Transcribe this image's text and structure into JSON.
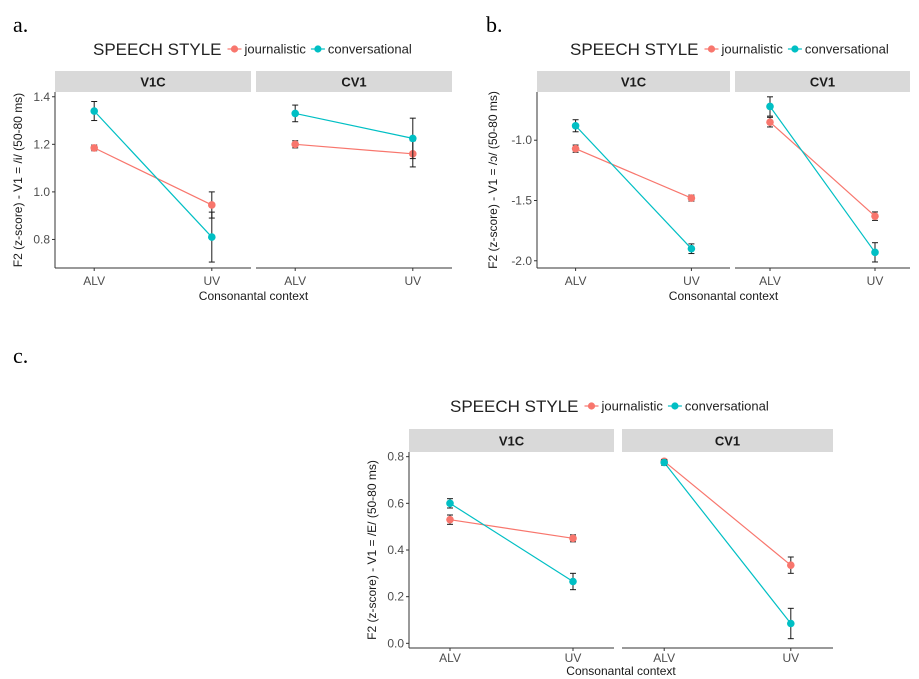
{
  "figure_labels": [
    "a.",
    "b.",
    "c."
  ],
  "colors": {
    "journalistic": "#F8766D",
    "conversational": "#00BFC4",
    "strip": "#D9D9D9",
    "axis": "#333333",
    "errorbar": "#1a1a1a"
  },
  "chart_data": [
    {
      "type": "line",
      "legend_title": "SPEECH STYLE",
      "legend_position": "top",
      "ylabel": "F2 (z-score) - V1 = /i/ (50-80 ms)",
      "xlabel": "Consonantal context",
      "categories": [
        "ALV",
        "UV"
      ],
      "ylim": [
        0.68,
        1.42
      ],
      "yticks": [
        0.8,
        1.0,
        1.2,
        1.4
      ],
      "ytick_labels": [
        "0.8",
        "1.0",
        "1.2",
        "1.4"
      ],
      "grid": false,
      "facets": [
        {
          "name": "V1C",
          "series": [
            {
              "name": "journalistic",
              "values": [
                1.185,
                0.945
              ],
              "err": [
                0.012,
                0.055
              ]
            },
            {
              "name": "conversational",
              "values": [
                1.34,
                0.81
              ],
              "err": [
                0.04,
                0.105
              ]
            }
          ]
        },
        {
          "name": "CV1",
          "series": [
            {
              "name": "journalistic",
              "values": [
                1.2,
                1.16
              ],
              "err": [
                0.015,
                0.055
              ]
            },
            {
              "name": "conversational",
              "values": [
                1.33,
                1.225
              ],
              "err": [
                0.035,
                0.085
              ]
            }
          ]
        }
      ]
    },
    {
      "type": "line",
      "legend_title": "SPEECH STYLE",
      "legend_position": "top",
      "ylabel": "F2 (z-score) - V1 = /ɔ/ (50-80 ms)",
      "xlabel": "Consonantal context",
      "categories": [
        "ALV",
        "UV"
      ],
      "ylim": [
        -2.06,
        -0.6
      ],
      "yticks": [
        -1.0,
        -1.5,
        -2.0
      ],
      "ytick_labels": [
        "-1.0",
        "-1.5",
        "-2.0"
      ],
      "grid": false,
      "facets": [
        {
          "name": "V1C",
          "series": [
            {
              "name": "journalistic",
              "values": [
                -1.07,
                -1.48
              ],
              "err": [
                0.03,
                0.025
              ]
            },
            {
              "name": "conversational",
              "values": [
                -0.88,
                -1.9
              ],
              "err": [
                0.05,
                0.04
              ]
            }
          ]
        },
        {
          "name": "CV1",
          "series": [
            {
              "name": "journalistic",
              "values": [
                -0.85,
                -1.63
              ],
              "err": [
                0.04,
                0.035
              ]
            },
            {
              "name": "conversational",
              "values": [
                -0.72,
                -1.93
              ],
              "err": [
                0.08,
                0.08
              ]
            }
          ]
        }
      ]
    },
    {
      "type": "line",
      "legend_title": "SPEECH STYLE",
      "legend_position": "top",
      "ylabel": "F2 (z-score) - V1 = /E/ (50-80 ms)",
      "xlabel": "Consonantal context",
      "categories": [
        "ALV",
        "UV"
      ],
      "ylim": [
        -0.02,
        0.82
      ],
      "yticks": [
        0.0,
        0.2,
        0.4,
        0.6,
        0.8
      ],
      "ytick_labels": [
        "0.0",
        "0.2",
        "0.4",
        "0.6",
        "0.8"
      ],
      "grid": false,
      "facets": [
        {
          "name": "V1C",
          "series": [
            {
              "name": "journalistic",
              "values": [
                0.53,
                0.45
              ],
              "err": [
                0.02,
                0.015
              ]
            },
            {
              "name": "conversational",
              "values": [
                0.6,
                0.265
              ],
              "err": [
                0.02,
                0.035
              ]
            }
          ]
        },
        {
          "name": "CV1",
          "series": [
            {
              "name": "journalistic",
              "values": [
                0.78,
                0.335
              ],
              "err": [
                0.008,
                0.035
              ]
            },
            {
              "name": "conversational",
              "values": [
                0.775,
                0.085
              ],
              "err": [
                0.012,
                0.065
              ]
            }
          ]
        }
      ]
    }
  ]
}
